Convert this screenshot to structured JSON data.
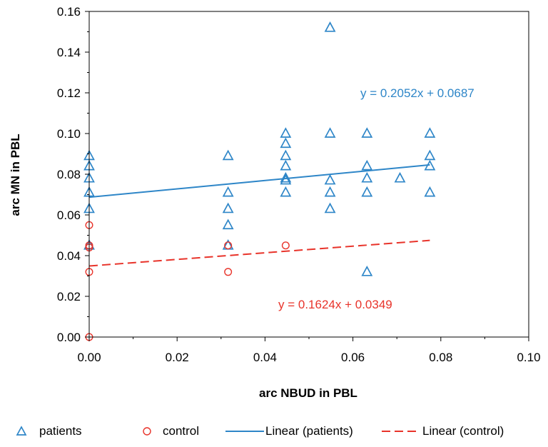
{
  "chart_data": {
    "type": "scatter",
    "xlabel": "arc NBUD in PBL",
    "ylabel": "arc MN in PBL",
    "xlim": [
      0,
      0.1
    ],
    "ylim": [
      0,
      0.16
    ],
    "x_ticks": [
      "0.00",
      "0.02",
      "0.04",
      "0.06",
      "0.08",
      "0.10"
    ],
    "y_ticks": [
      "0.00",
      "0.02",
      "0.04",
      "0.06",
      "0.08",
      "0.10",
      "0.12",
      "0.14",
      "0.16"
    ],
    "grid": false,
    "legend_position": "bottom",
    "series": [
      {
        "name": "patients",
        "marker": "triangle",
        "color": "#2E86C8",
        "points": [
          [
            0.0,
            0.089
          ],
          [
            0.0,
            0.084
          ],
          [
            0.0,
            0.078
          ],
          [
            0.0,
            0.071
          ],
          [
            0.0,
            0.063
          ],
          [
            0.0,
            0.045
          ],
          [
            0.0316,
            0.089
          ],
          [
            0.0316,
            0.071
          ],
          [
            0.0316,
            0.063
          ],
          [
            0.0316,
            0.055
          ],
          [
            0.0316,
            0.045
          ],
          [
            0.0447,
            0.1
          ],
          [
            0.0447,
            0.095
          ],
          [
            0.0447,
            0.089
          ],
          [
            0.0447,
            0.084
          ],
          [
            0.0447,
            0.078
          ],
          [
            0.0447,
            0.077
          ],
          [
            0.0447,
            0.071
          ],
          [
            0.0548,
            0.152
          ],
          [
            0.0548,
            0.1
          ],
          [
            0.0548,
            0.077
          ],
          [
            0.0548,
            0.071
          ],
          [
            0.0548,
            0.063
          ],
          [
            0.0632,
            0.1
          ],
          [
            0.0632,
            0.084
          ],
          [
            0.0632,
            0.078
          ],
          [
            0.0632,
            0.071
          ],
          [
            0.0632,
            0.032
          ],
          [
            0.0707,
            0.078
          ],
          [
            0.0775,
            0.1
          ],
          [
            0.0775,
            0.089
          ],
          [
            0.0775,
            0.084
          ],
          [
            0.0775,
            0.071
          ]
        ]
      },
      {
        "name": "control",
        "marker": "circle",
        "color": "#E8332A",
        "points": [
          [
            0.0,
            0.055
          ],
          [
            0.0,
            0.045
          ],
          [
            0.0,
            0.044
          ],
          [
            0.0,
            0.032
          ],
          [
            0.0,
            0.0
          ],
          [
            0.0316,
            0.045
          ],
          [
            0.0316,
            0.032
          ],
          [
            0.0447,
            0.045
          ]
        ]
      }
    ],
    "trendlines": [
      {
        "name": "Linear (patients)",
        "slope": 0.2052,
        "intercept": 0.0687,
        "x_range": [
          0,
          0.0775
        ],
        "color": "#2E86C8",
        "style": "solid",
        "equation": "y = 0.2052x + 0.0687"
      },
      {
        "name": "Linear (control)",
        "slope": 0.1624,
        "intercept": 0.0349,
        "x_range": [
          0,
          0.0775
        ],
        "color": "#E8332A",
        "style": "dashed",
        "equation": "y = 0.1624x + 0.0349"
      }
    ]
  }
}
